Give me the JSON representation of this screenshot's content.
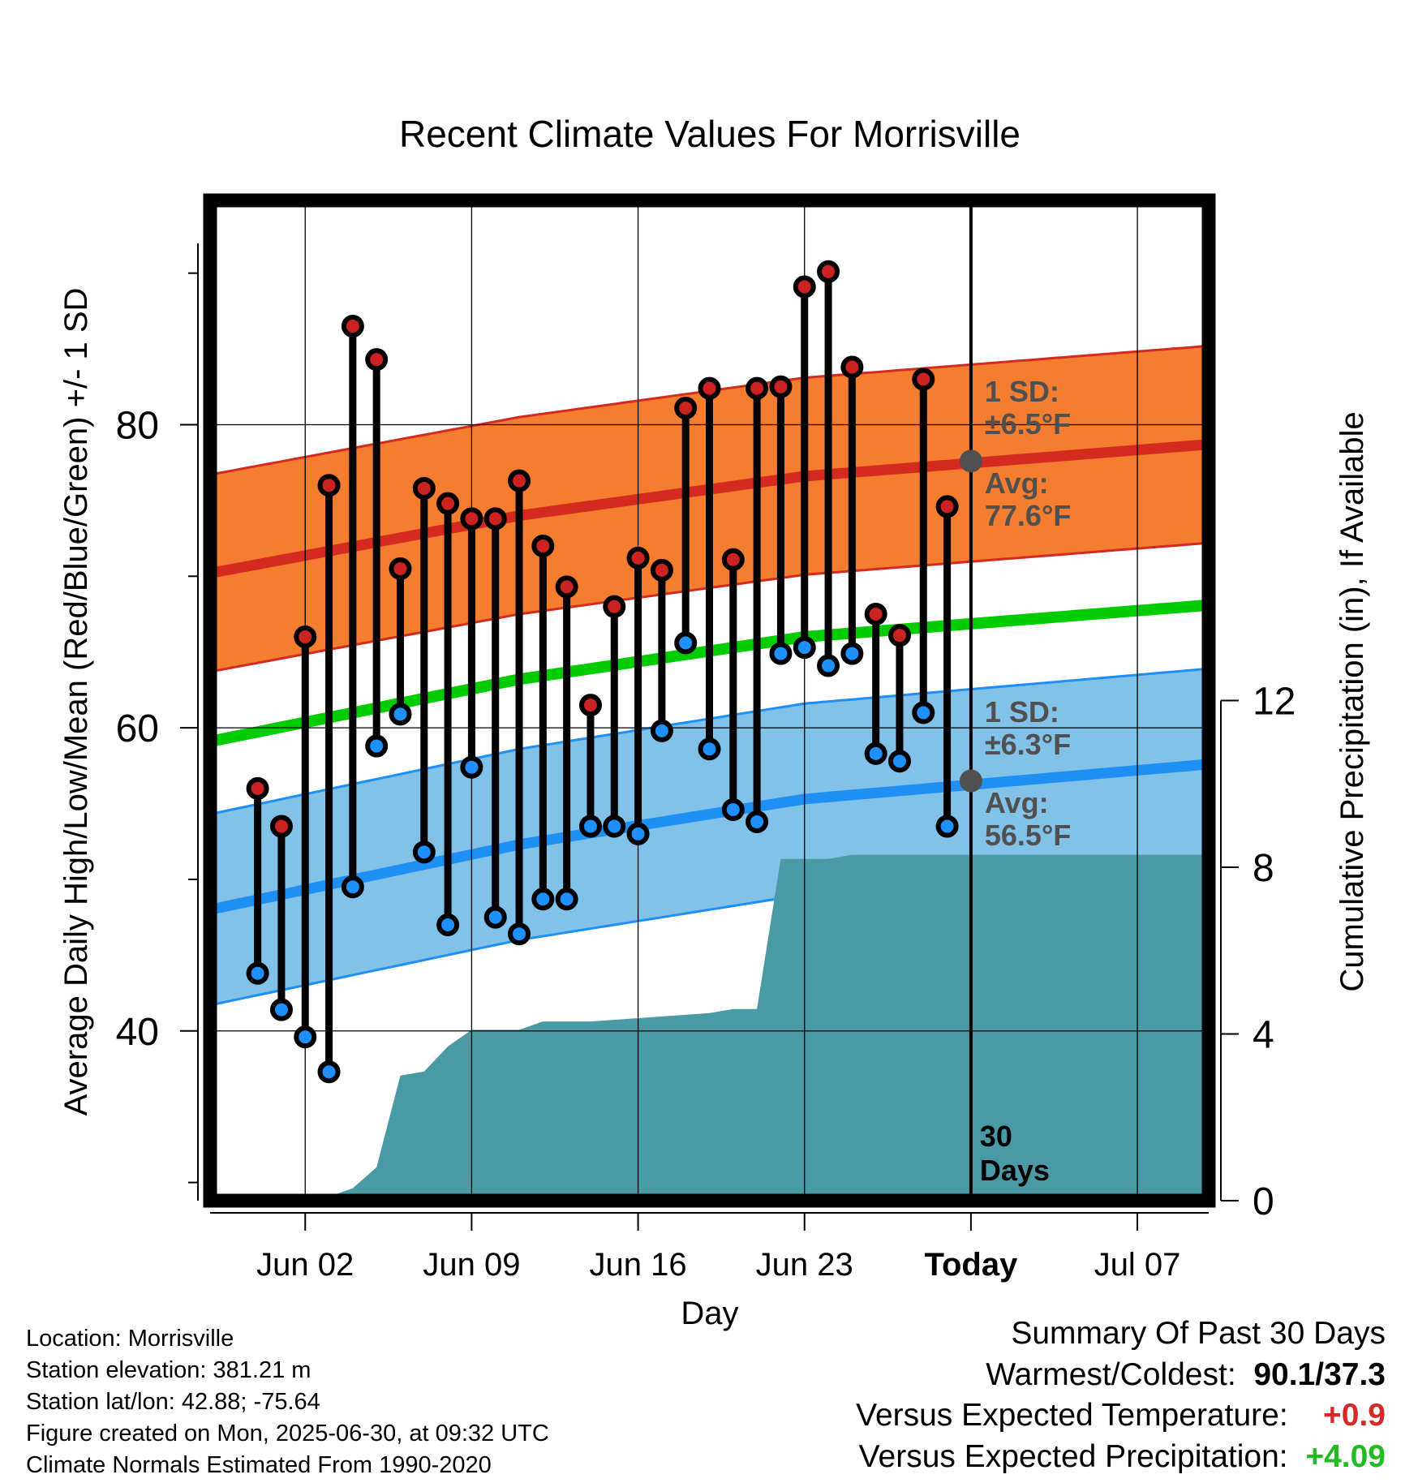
{
  "chart_data": {
    "type": "line",
    "title": "Recent Climate Values For Morrisville",
    "xlabel": "Day",
    "ylabel": "Average Daily High/Low/Mean (Red/Blue/Green) +/- 1 SD",
    "y2label": "Cumulative Precipitation (in), If Available",
    "x_tick_labels": [
      "Jun 02",
      "Jun 09",
      "Jun 16",
      "Jun 23",
      "Today",
      "Jul 07"
    ],
    "y_ticks": [
      "40",
      "60",
      "80"
    ],
    "y2_ticks": [
      "0",
      "4",
      "8",
      "12"
    ],
    "ylim": [
      28.8,
      94.8
    ],
    "y2lim": [
      0,
      24
    ],
    "xlim": [
      "May 29",
      "Jul 10"
    ],
    "days": [
      "May 31",
      "Jun 01",
      "Jun 02",
      "Jun 03",
      "Jun 04",
      "Jun 05",
      "Jun 06",
      "Jun 07",
      "Jun 08",
      "Jun 09",
      "Jun 10",
      "Jun 11",
      "Jun 12",
      "Jun 13",
      "Jun 14",
      "Jun 15",
      "Jun 16",
      "Jun 17",
      "Jun 18",
      "Jun 19",
      "Jun 20",
      "Jun 21",
      "Jun 22",
      "Jun 23",
      "Jun 24",
      "Jun 25",
      "Jun 26",
      "Jun 27",
      "Jun 28",
      "Jun 29"
    ],
    "series": [
      {
        "name": "Daily High",
        "color": "#cc2222",
        "values": [
          56.0,
          53.5,
          66.0,
          76.0,
          86.5,
          84.3,
          70.5,
          75.8,
          74.8,
          73.8,
          73.8,
          76.3,
          72.0,
          69.3,
          61.5,
          68.0,
          71.2,
          70.4,
          81.1,
          82.4,
          71.1,
          82.4,
          82.5,
          89.1,
          90.1,
          83.8,
          67.5,
          66.1,
          83.0,
          74.6
        ]
      },
      {
        "name": "Daily Low",
        "color": "#1e90ff",
        "values": [
          43.8,
          41.4,
          39.6,
          37.3,
          49.5,
          58.8,
          60.9,
          51.8,
          47.0,
          57.4,
          47.5,
          46.4,
          48.7,
          48.7,
          53.5,
          53.5,
          53.0,
          59.8,
          65.6,
          58.6,
          54.6,
          53.8,
          64.9,
          65.3,
          64.1,
          64.9,
          58.3,
          57.8,
          61.0,
          53.5
        ]
      },
      {
        "name": "Normal High",
        "days": [
          "May 29",
          "Jun 11",
          "Jun 23",
          "Jul 10"
        ],
        "values": [
          70.2,
          74.0,
          76.6,
          78.7
        ]
      },
      {
        "name": "Normal Low",
        "days": [
          "May 29",
          "Jun 11",
          "Jun 23",
          "Jul 10"
        ],
        "values": [
          48.0,
          52.3,
          55.3,
          57.6
        ]
      },
      {
        "name": "Normal Mean",
        "days": [
          "May 29",
          "Jun 11",
          "Jun 23",
          "Jul 10"
        ],
        "values": [
          59.1,
          63.2,
          66.0,
          68.1
        ]
      },
      {
        "name": "Cumulative Precipitation",
        "unit": "in",
        "color": "#4a9aa5",
        "days": [
          "May 29",
          "Jun 03",
          "Jun 04",
          "Jun 05",
          "Jun 06",
          "Jun 07",
          "Jun 08",
          "Jun 09",
          "Jun 10",
          "Jun 11",
          "Jun 12",
          "Jun 13",
          "Jun 14",
          "Jun 19",
          "Jun 20",
          "Jun 21",
          "Jun 22",
          "Jun 23",
          "Jun 24",
          "Jun 25",
          "Jul 10"
        ],
        "values": [
          0.0,
          0.1,
          0.3,
          0.8,
          3.0,
          3.1,
          3.7,
          4.1,
          4.1,
          4.1,
          4.3,
          4.3,
          4.3,
          4.5,
          4.6,
          4.6,
          8.2,
          8.2,
          8.2,
          8.3,
          8.3
        ]
      }
    ],
    "sd_high": 6.5,
    "sd_low": 6.3,
    "today": "Jun 30",
    "annotations": {
      "high_sd": [
        "1 SD:",
        "±6.5°F"
      ],
      "high_avg": [
        "Avg:",
        "77.6°F"
      ],
      "low_sd": [
        "1 SD:",
        "±6.3°F"
      ],
      "low_avg": [
        "Avg:",
        "56.5°F"
      ],
      "days_window": [
        "30",
        "Days"
      ],
      "today_high_avg": 77.6,
      "today_low_avg": 56.5
    },
    "colors": {
      "high_band": "#f47d30",
      "high_line": "#d42a20",
      "low_band": "#82c1e8",
      "low_line": "#1e8ff5",
      "mean_line": "#00cc00",
      "precip": "#4a9aa5",
      "high_marker": "#cc2222",
      "low_marker": "#1e90ff",
      "annotation": "#505050"
    }
  },
  "station": {
    "location": "Location: Morrisville",
    "elevation": "Station elevation: 381.21 m",
    "latlon": "Station lat/lon: 42.88; -75.64",
    "created": "Figure created on Mon, 2025-06-30, at 09:32 UTC",
    "normals": "Climate Normals Estimated From 1990-2020"
  },
  "summary": {
    "title": "Summary Of Past 30 Days",
    "extremes_label": "Warmest/Coldest:",
    "extremes_value": "90.1/37.3",
    "temp_label": "Versus Expected Temperature:",
    "temp_value": "+0.9",
    "temp_color": "#d42a2a",
    "precip_label": "Versus Expected Precipitation:",
    "precip_value": "+4.09",
    "precip_color": "#22bb22"
  }
}
